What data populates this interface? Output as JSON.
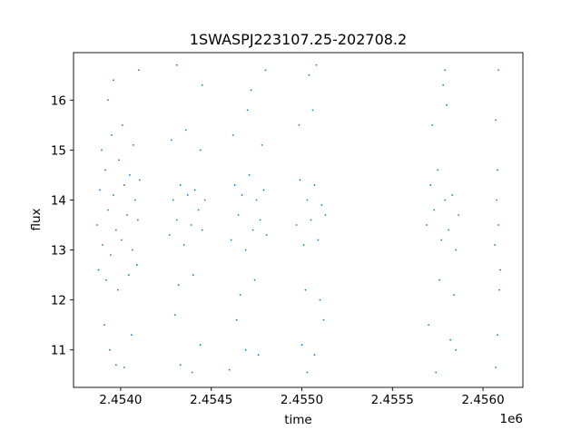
{
  "chart_data": {
    "type": "scatter",
    "title": "1SWASPJ223107.25-202708.2",
    "xlabel": "time",
    "ylabel": "flux",
    "x_offset_label": "1e6",
    "xlim": [
      2453740,
      2456220
    ],
    "ylim": [
      10.25,
      16.95
    ],
    "x_ticks": [
      {
        "value": 2454000,
        "label": "2.4540"
      },
      {
        "value": 2454500,
        "label": "2.4545"
      },
      {
        "value": 2455000,
        "label": "2.4550"
      },
      {
        "value": 2455500,
        "label": "2.4555"
      },
      {
        "value": 2456000,
        "label": "2.4560"
      }
    ],
    "y_ticks": [
      {
        "value": 11,
        "label": "11"
      },
      {
        "value": 12,
        "label": "12"
      },
      {
        "value": 13,
        "label": "13"
      },
      {
        "value": 14,
        "label": "14"
      },
      {
        "value": 15,
        "label": "15"
      },
      {
        "value": 16,
        "label": "16"
      }
    ],
    "grid": false,
    "legend": "none",
    "marker_color": "#1f77b4",
    "series": [
      {
        "points": [
          [
            2453870,
            13.5
          ],
          [
            2453885,
            14.2
          ],
          [
            2453900,
            13.1
          ],
          [
            2453915,
            14.6
          ],
          [
            2453930,
            13.8
          ],
          [
            2453945,
            12.9
          ],
          [
            2453960,
            14.1
          ],
          [
            2453975,
            13.4
          ],
          [
            2453990,
            14.8
          ],
          [
            2454005,
            13.2
          ],
          [
            2454020,
            14.3
          ],
          [
            2454035,
            13.7
          ],
          [
            2454050,
            14.5
          ],
          [
            2454065,
            13.0
          ],
          [
            2454080,
            14.0
          ],
          [
            2454095,
            13.6
          ],
          [
            2454105,
            14.4
          ],
          [
            2453878,
            12.6
          ],
          [
            2453895,
            15.0
          ],
          [
            2453920,
            12.4
          ],
          [
            2453950,
            15.3
          ],
          [
            2453985,
            12.2
          ],
          [
            2454010,
            15.5
          ],
          [
            2454045,
            12.5
          ],
          [
            2454070,
            15.1
          ],
          [
            2454090,
            12.7
          ],
          [
            2453910,
            11.5
          ],
          [
            2453940,
            11.0
          ],
          [
            2453975,
            10.7
          ],
          [
            2454020,
            10.65
          ],
          [
            2454060,
            11.3
          ],
          [
            2453960,
            16.4
          ],
          [
            2454100,
            16.6
          ],
          [
            2453930,
            16.0
          ],
          [
            2454270,
            13.3
          ],
          [
            2454290,
            14.0
          ],
          [
            2454310,
            13.6
          ],
          [
            2454330,
            14.3
          ],
          [
            2454350,
            13.1
          ],
          [
            2454370,
            14.1
          ],
          [
            2454390,
            13.5
          ],
          [
            2454410,
            14.2
          ],
          [
            2454430,
            13.8
          ],
          [
            2454450,
            13.4
          ],
          [
            2454465,
            14.0
          ],
          [
            2454280,
            15.2
          ],
          [
            2454320,
            12.3
          ],
          [
            2454360,
            15.4
          ],
          [
            2454400,
            12.5
          ],
          [
            2454440,
            15.0
          ],
          [
            2454300,
            11.7
          ],
          [
            2454330,
            10.7
          ],
          [
            2454395,
            10.55
          ],
          [
            2454440,
            11.1
          ],
          [
            2454310,
            16.7
          ],
          [
            2454450,
            16.3
          ],
          [
            2454610,
            13.2
          ],
          [
            2454630,
            14.3
          ],
          [
            2454650,
            13.7
          ],
          [
            2454670,
            14.1
          ],
          [
            2454690,
            13.0
          ],
          [
            2454710,
            14.5
          ],
          [
            2454730,
            13.4
          ],
          [
            2454750,
            14.0
          ],
          [
            2454770,
            13.6
          ],
          [
            2454790,
            14.2
          ],
          [
            2454805,
            13.3
          ],
          [
            2454620,
            15.3
          ],
          [
            2454660,
            12.1
          ],
          [
            2454700,
            15.8
          ],
          [
            2454740,
            12.4
          ],
          [
            2454780,
            15.1
          ],
          [
            2454640,
            11.6
          ],
          [
            2454690,
            11.0
          ],
          [
            2454760,
            10.9
          ],
          [
            2454800,
            16.6
          ],
          [
            2454720,
            16.2
          ],
          [
            2454600,
            10.6
          ],
          [
            2454970,
            13.5
          ],
          [
            2454990,
            14.4
          ],
          [
            2455010,
            13.1
          ],
          [
            2455030,
            14.0
          ],
          [
            2455050,
            13.6
          ],
          [
            2455070,
            14.3
          ],
          [
            2455090,
            13.2
          ],
          [
            2455110,
            13.9
          ],
          [
            2455130,
            13.7
          ],
          [
            2454985,
            15.5
          ],
          [
            2455020,
            12.2
          ],
          [
            2455060,
            15.8
          ],
          [
            2455100,
            12.0
          ],
          [
            2455040,
            16.5
          ],
          [
            2455080,
            16.7
          ],
          [
            2455000,
            11.1
          ],
          [
            2455030,
            10.55
          ],
          [
            2455120,
            11.6
          ],
          [
            2455070,
            10.9
          ],
          [
            2455690,
            13.5
          ],
          [
            2455710,
            14.3
          ],
          [
            2455730,
            13.8
          ],
          [
            2455750,
            14.6
          ],
          [
            2455770,
            13.2
          ],
          [
            2455790,
            14.0
          ],
          [
            2455810,
            13.4
          ],
          [
            2455830,
            14.1
          ],
          [
            2455850,
            13.0
          ],
          [
            2455865,
            13.7
          ],
          [
            2455720,
            15.5
          ],
          [
            2455760,
            12.4
          ],
          [
            2455800,
            15.9
          ],
          [
            2455840,
            12.1
          ],
          [
            2455780,
            16.3
          ],
          [
            2455790,
            16.6
          ],
          [
            2455740,
            10.55
          ],
          [
            2455820,
            11.2
          ],
          [
            2455850,
            11.0
          ],
          [
            2455700,
            11.5
          ],
          [
            2456065,
            13.1
          ],
          [
            2456075,
            14.0
          ],
          [
            2456085,
            13.5
          ],
          [
            2456095,
            12.6
          ],
          [
            2456080,
            14.6
          ],
          [
            2456090,
            12.2
          ],
          [
            2456070,
            15.6
          ],
          [
            2456085,
            16.6
          ],
          [
            2456070,
            10.65
          ],
          [
            2456080,
            11.3
          ]
        ]
      }
    ]
  }
}
